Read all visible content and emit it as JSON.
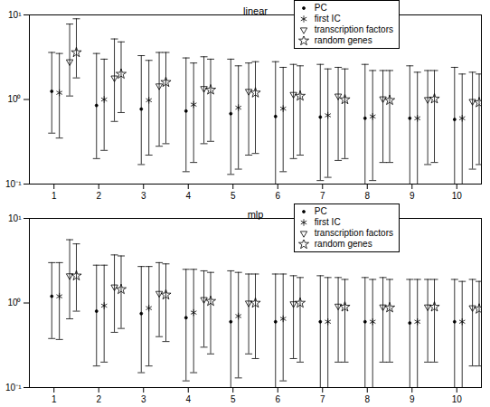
{
  "chart_data": [
    {
      "type": "scatter",
      "title": "linear",
      "log": "y",
      "legend": "top right",
      "xlim": [
        0.45,
        10.55
      ],
      "xticks": [
        1,
        2,
        3,
        4,
        5,
        6,
        7,
        8,
        9,
        10
      ],
      "ylim": [
        0.1,
        10
      ],
      "yticks": [
        {
          "value": 0.1,
          "label": "10⁻¹"
        },
        {
          "value": 1,
          "label": "10⁰"
        },
        {
          "value": 10,
          "label": "10¹"
        }
      ],
      "series": [
        {
          "name": "PC",
          "marker": "dot",
          "color": "#000000",
          "x": [
            0.95,
            1.95,
            2.95,
            3.95,
            4.95,
            5.95,
            6.95,
            7.95,
            8.95,
            9.95
          ],
          "values": [
            1.25,
            0.85,
            0.77,
            0.73,
            0.68,
            0.63,
            0.62,
            0.6,
            0.6,
            0.58
          ],
          "lower": [
            0.4,
            0.2,
            0.17,
            0.14,
            0.13,
            0.1,
            0.11,
            0.1,
            0.1,
            0.1
          ],
          "upper": [
            3.6,
            3.5,
            3.3,
            3.1,
            3.0,
            2.8,
            2.6,
            2.6,
            2.5,
            2.4
          ]
        },
        {
          "name": "first IC",
          "marker": "asterisk",
          "color": "#000000",
          "x": [
            1.12,
            2.12,
            3.12,
            4.12,
            5.12,
            6.12,
            7.12,
            8.12,
            9.12,
            10.12
          ],
          "values": [
            1.2,
            1.0,
            0.98,
            0.87,
            0.8,
            0.78,
            0.65,
            0.63,
            0.6,
            0.6
          ],
          "lower": [
            0.35,
            0.25,
            0.22,
            0.18,
            0.15,
            0.14,
            0.12,
            0.11,
            0.1,
            0.1
          ],
          "upper": [
            3.5,
            3.0,
            2.9,
            2.7,
            2.5,
            2.4,
            2.3,
            2.2,
            2.1,
            2.0
          ]
        },
        {
          "name": "transcription factors",
          "marker": "triangle-down",
          "color": "#000000",
          "x": [
            1.35,
            2.35,
            3.35,
            4.35,
            5.35,
            6.35,
            7.35,
            8.35,
            9.35,
            10.35
          ],
          "values": [
            2.8,
            1.8,
            1.45,
            1.35,
            1.25,
            1.15,
            1.1,
            1.02,
            1.0,
            0.95
          ],
          "lower": [
            1.1,
            0.55,
            0.28,
            0.3,
            0.22,
            0.2,
            0.19,
            0.18,
            0.17,
            0.15
          ],
          "upper": [
            7.8,
            5.2,
            3.6,
            3.2,
            2.7,
            2.6,
            2.4,
            2.2,
            2.2,
            2.1
          ]
        },
        {
          "name": "random genes",
          "marker": "star",
          "color": "#000000",
          "x": [
            1.5,
            2.5,
            3.5,
            4.5,
            5.5,
            6.5,
            7.5,
            8.5,
            9.5,
            10.5
          ],
          "values": [
            3.6,
            2.0,
            1.6,
            1.3,
            1.2,
            1.1,
            1.0,
            0.98,
            1.02,
            0.92
          ],
          "lower": [
            1.8,
            0.7,
            0.3,
            0.32,
            0.23,
            0.22,
            0.2,
            0.18,
            0.18,
            0.17
          ],
          "upper": [
            9.0,
            4.8,
            3.6,
            3.0,
            2.8,
            2.5,
            2.3,
            2.2,
            2.2,
            2.0
          ]
        }
      ]
    },
    {
      "type": "scatter",
      "title": "mlp",
      "log": "y",
      "legend": "top right",
      "xlim": [
        0.45,
        10.55
      ],
      "xticks": [
        1,
        2,
        3,
        4,
        5,
        6,
        7,
        8,
        9,
        10
      ],
      "ylim": [
        0.1,
        10
      ],
      "yticks": [
        {
          "value": 0.1,
          "label": "10⁻¹"
        },
        {
          "value": 1,
          "label": "10⁰"
        },
        {
          "value": 10,
          "label": "10¹"
        }
      ],
      "series": [
        {
          "name": "PC",
          "marker": "dot",
          "color": "#000000",
          "x": [
            0.95,
            1.95,
            2.95,
            3.95,
            4.95,
            5.95,
            6.95,
            7.95,
            8.95,
            9.95
          ],
          "values": [
            1.2,
            0.8,
            0.75,
            0.67,
            0.6,
            0.6,
            0.6,
            0.6,
            0.58,
            0.6
          ],
          "lower": [
            0.38,
            0.18,
            0.15,
            0.12,
            0.1,
            0.09,
            0.1,
            0.1,
            0.1,
            0.1
          ],
          "upper": [
            3.0,
            2.8,
            2.7,
            2.5,
            2.4,
            2.2,
            2.1,
            2.0,
            1.9,
            1.9
          ]
        },
        {
          "name": "first IC",
          "marker": "asterisk",
          "color": "#000000",
          "x": [
            1.12,
            2.12,
            3.12,
            4.12,
            5.12,
            6.12,
            7.12,
            8.12,
            9.12,
            10.12
          ],
          "values": [
            1.2,
            0.93,
            0.87,
            0.77,
            0.7,
            0.65,
            0.6,
            0.6,
            0.6,
            0.6
          ],
          "lower": [
            0.37,
            0.2,
            0.18,
            0.15,
            0.13,
            0.12,
            0.1,
            0.1,
            0.1,
            0.1
          ],
          "upper": [
            3.0,
            2.8,
            2.7,
            2.5,
            2.3,
            2.2,
            2.0,
            1.9,
            1.9,
            1.8
          ]
        },
        {
          "name": "transcription factors",
          "marker": "triangle-down",
          "color": "#000000",
          "x": [
            1.35,
            2.35,
            3.35,
            4.35,
            5.35,
            6.35,
            7.35,
            8.35,
            9.35,
            10.35
          ],
          "values": [
            2.1,
            1.55,
            1.3,
            1.1,
            1.0,
            0.98,
            0.92,
            0.9,
            0.9,
            0.88
          ],
          "lower": [
            0.65,
            0.45,
            0.4,
            0.3,
            0.25,
            0.22,
            0.2,
            0.2,
            0.2,
            0.18
          ],
          "upper": [
            5.6,
            3.7,
            3.0,
            2.4,
            2.2,
            2.1,
            2.0,
            2.0,
            1.9,
            1.9
          ]
        },
        {
          "name": "random genes",
          "marker": "star",
          "color": "#000000",
          "x": [
            1.5,
            2.5,
            3.5,
            4.5,
            5.5,
            6.5,
            7.5,
            8.5,
            9.5,
            10.5
          ],
          "values": [
            2.1,
            1.45,
            1.25,
            1.05,
            1.0,
            1.0,
            0.9,
            0.88,
            0.9,
            0.85
          ],
          "lower": [
            0.8,
            0.5,
            0.35,
            0.25,
            0.22,
            0.2,
            0.2,
            0.2,
            0.2,
            0.18
          ],
          "upper": [
            5.0,
            3.6,
            2.9,
            2.3,
            2.2,
            2.0,
            1.9,
            1.9,
            1.9,
            1.8
          ]
        }
      ]
    }
  ]
}
